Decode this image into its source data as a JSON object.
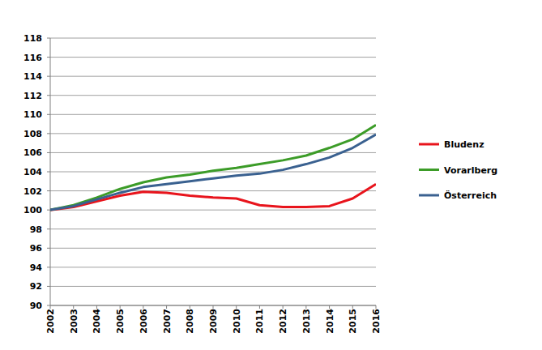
{
  "chart_data": {
    "type": "line",
    "categories": [
      "2002",
      "2003",
      "2004",
      "2005",
      "2006",
      "2007",
      "2008",
      "2009",
      "2010",
      "2011",
      "2012",
      "2013",
      "2014",
      "2015",
      "2016"
    ],
    "series": [
      {
        "name": "Bludenz",
        "color": "#e8141c",
        "values": [
          100,
          100.3,
          100.9,
          101.5,
          101.9,
          101.8,
          101.5,
          101.3,
          101.2,
          100.5,
          100.3,
          100.3,
          100.4,
          101.2,
          102.7
        ]
      },
      {
        "name": "Vorarlberg",
        "color": "#3c9c28",
        "values": [
          100,
          100.5,
          101.3,
          102.2,
          102.9,
          103.4,
          103.7,
          104.1,
          104.4,
          104.8,
          105.2,
          105.7,
          106.5,
          107.4,
          108.9
        ]
      },
      {
        "name": "Österreich",
        "color": "#3a6190",
        "values": [
          100,
          100.4,
          101.1,
          101.8,
          102.4,
          102.7,
          103.0,
          103.3,
          103.6,
          103.8,
          104.2,
          104.8,
          105.5,
          106.5,
          107.9
        ]
      }
    ],
    "ylim": [
      90,
      118
    ],
    "yticks": [
      90,
      92,
      94,
      96,
      98,
      100,
      102,
      104,
      106,
      108,
      110,
      112,
      114,
      116,
      118
    ],
    "grid": true,
    "legend": "right"
  }
}
